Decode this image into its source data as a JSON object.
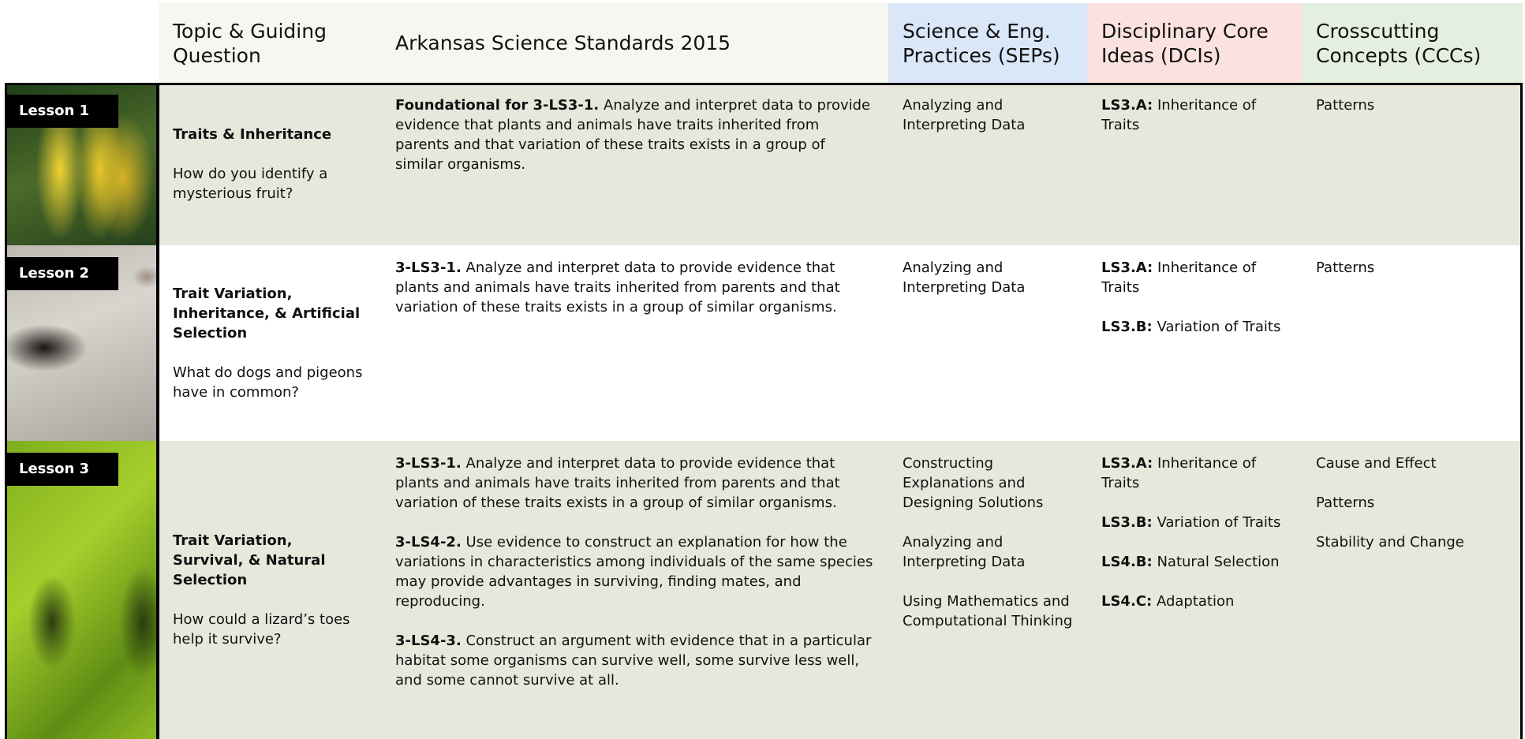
{
  "header": {
    "columns": [
      "Topic & Guiding Question",
      "Arkansas Science Standards 2015",
      "Science & Eng. Practices (SEPs)",
      "Disciplinary Core Ideas (DCIs)",
      "Crosscutting Concepts (CCCs)"
    ]
  },
  "rows": [
    {
      "lesson": "Lesson 1",
      "topic": "Traits & Inheritance",
      "question": "How do you identify a mysterious fruit?",
      "standards": [
        {
          "code": "Foundational for 3-LS3-1.",
          "text": "Analyze and interpret data to provide evidence that plants and animals have traits inherited from parents and that variation of these traits exists in a group of similar organisms."
        }
      ],
      "seps": [
        "Analyzing and Interpreting Data"
      ],
      "dcis": [
        {
          "code": "LS3.A:",
          "text": "Inheritance of Traits"
        }
      ],
      "cccs": [
        "Patterns"
      ]
    },
    {
      "lesson": "Lesson 2",
      "topic": "Trait Variation, Inheritance, & Artificial Selection",
      "question": "What do dogs and pigeons have in common?",
      "standards": [
        {
          "code": "3-LS3-1.",
          "text": "Analyze and interpret data to provide evidence that plants and animals have traits inherited from parents and that variation of these traits exists in a group of similar organisms."
        }
      ],
      "seps": [
        "Analyzing and Interpreting Data"
      ],
      "dcis": [
        {
          "code": "LS3.A:",
          "text": "Inheritance of Traits"
        },
        {
          "code": "LS3.B:",
          "text": "Variation of Traits"
        }
      ],
      "cccs": [
        "Patterns"
      ]
    },
    {
      "lesson": "Lesson 3",
      "topic": "Trait Variation, Survival, & Natural Selection",
      "question": "How could a lizard’s toes help it survive?",
      "standards": [
        {
          "code": "3-LS3-1.",
          "text": "Analyze and interpret data to provide evidence that plants and animals have traits inherited from parents and that variation of these traits exists in a group of similar organisms."
        },
        {
          "code": "3-LS4-2.",
          "text": "Use evidence to construct an explanation for how the variations in characteristics among individuals of the same species may provide advantages in surviving, finding mates, and reproducing."
        },
        {
          "code": "3-LS4-3.",
          "text": "Construct an argument with evidence that in a particular habitat some organisms can survive well, some survive less well, and some cannot survive at all."
        }
      ],
      "seps": [
        "Constructing Explanations and Designing Solutions",
        "Analyzing and Interpreting Data",
        "Using Mathematics and Computational Thinking"
      ],
      "dcis": [
        {
          "code": "LS3.A:",
          "text": "Inheritance of Traits"
        },
        {
          "code": "LS3.B:",
          "text": "Variation of Traits"
        },
        {
          "code": "LS4.B:",
          "text": "Natural Selection"
        },
        {
          "code": "LS4.C:",
          "text": "Adaptation"
        }
      ],
      "cccs": [
        "Cause and Effect",
        "Patterns",
        "Stability and Change"
      ]
    }
  ]
}
